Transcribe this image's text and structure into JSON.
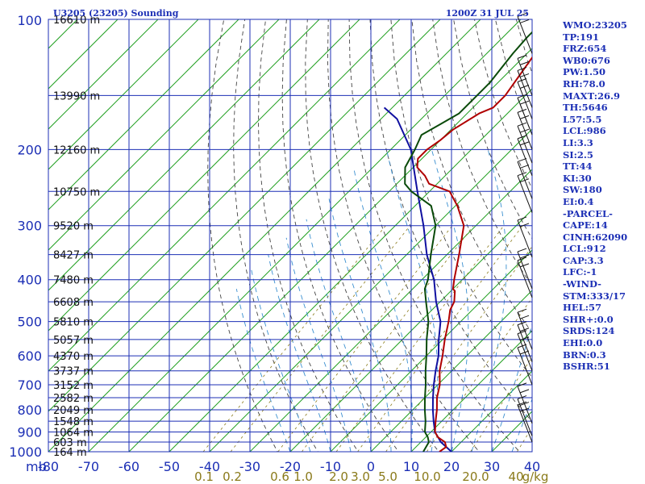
{
  "header": {
    "station": "U3205 (23205) Sounding",
    "valid": "1200Z 31 JUL 25"
  },
  "indices": [
    "WMO:23205",
    "TP:191",
    "FRZ:654",
    "WB0:676",
    "PW:1.50",
    "RH:78.0",
    "MAXT:26.9",
    "TH:5646",
    "L57:5.5",
    "LCL:986",
    "LI:3.3",
    "SI:2.5",
    "TT:44",
    "KI:30",
    "SW:180",
    "EI:0.4",
    "-PARCEL-",
    "CAPE:14",
    "CINH:62090",
    "LCL:912",
    "CAP:3.3",
    "LFC:-1",
    "-WIND-",
    "STM:333/17",
    "HEL:57",
    "SHR+:0.0",
    "SRDS:124",
    "EHI:0.0",
    "BRN:0.3",
    "BSHR:51"
  ],
  "chart_data": {
    "type": "skew-t",
    "colors": {
      "grid": "#1c2fb5",
      "temperature": "#b00000",
      "dewpoint": "#0a4a0a",
      "parcel": "#1010a0",
      "isotherm": "#22a022",
      "dry_adiabat": "#444444",
      "moist_adiabat": "#3a8fd0",
      "mixing_ratio": "#8a7a1a"
    },
    "pressure_axis": {
      "unit": "mb",
      "labels": [
        "100",
        "200",
        "300",
        "400",
        "500",
        "600",
        "700",
        "800",
        "900",
        "1000"
      ],
      "values": [
        100,
        200,
        300,
        400,
        500,
        600,
        700,
        800,
        900,
        1000
      ],
      "log_scale": true
    },
    "temperature_axis": {
      "labels": [
        "-80",
        "-70",
        "-60",
        "-50",
        "-40",
        "-30",
        "-20",
        "-10",
        "0",
        "10",
        "20",
        "30",
        "40"
      ],
      "values": [
        -80,
        -70,
        -60,
        -50,
        -40,
        -30,
        -20,
        -10,
        0,
        10,
        20,
        30,
        40
      ]
    },
    "mixing_ratio_labels": {
      "labels": [
        "0.1",
        "0.2",
        "0.6",
        "1.0",
        "2.0",
        "3.0",
        "5.0",
        "10.0",
        "20.0",
        "40"
      ],
      "unit": "g/kg"
    },
    "height_levels": {
      "labels": [
        "16610 m",
        "13990 m",
        "12160 m",
        "10750 m",
        "9520 m",
        "8427 m",
        "7480 m",
        "6608 m",
        "5810 m",
        "5057 m",
        "4370 m",
        "3737 m",
        "3152 m",
        "2582 m",
        "2049 m",
        "1548 m",
        "1064 m",
        "603 m",
        "164 m"
      ],
      "pressures": [
        100,
        150,
        200,
        250,
        300,
        350,
        400,
        450,
        500,
        550,
        600,
        650,
        700,
        750,
        800,
        850,
        900,
        950,
        1000
      ]
    },
    "temperature_profile": {
      "pressure": [
        1000,
        975,
        950,
        925,
        900,
        850,
        800,
        750,
        700,
        650,
        600,
        550,
        500,
        470,
        450,
        425,
        420,
        400,
        350,
        300,
        270,
        250,
        240,
        230,
        220,
        210,
        200,
        190,
        180,
        165,
        160,
        150,
        120,
        110,
        100
      ],
      "temp": [
        17,
        17.5,
        16,
        13,
        11,
        8.5,
        6,
        3,
        0.5,
        -3,
        -6,
        -9.5,
        -13,
        -15.5,
        -16.5,
        -19,
        -20,
        -22,
        -27,
        -33,
        -39.5,
        -45,
        -52,
        -55,
        -59,
        -61,
        -61,
        -60,
        -59.5,
        -57,
        -55,
        -55,
        -58,
        -60,
        -60
      ]
    },
    "dewpoint_profile": {
      "pressure": [
        1000,
        975,
        950,
        925,
        900,
        850,
        800,
        750,
        700,
        650,
        600,
        550,
        500,
        450,
        420,
        400,
        350,
        300,
        270,
        250,
        240,
        220,
        200,
        185,
        175,
        165,
        150,
        140,
        120,
        110,
        100
      ],
      "dewpoint": [
        13,
        12.5,
        12,
        10.5,
        8.5,
        6,
        3,
        0,
        -3,
        -6.5,
        -10,
        -14,
        -18,
        -23.5,
        -27,
        -28.5,
        -34,
        -40,
        -46,
        -54.5,
        -58,
        -62,
        -64,
        -66,
        -64,
        -62,
        -62,
        -62,
        -63.5,
        -64,
        -64
      ]
    },
    "parcel_profile": {
      "pressure": [
        1000,
        950,
        900,
        850,
        800,
        750,
        700,
        650,
        600,
        550,
        500,
        450,
        400,
        350,
        300,
        250,
        200,
        170,
        160
      ],
      "temp": [
        20,
        15,
        11,
        8,
        5,
        2,
        -1,
        -4,
        -7,
        -11,
        -15,
        -21,
        -27,
        -35,
        -43,
        -53,
        -65,
        -76,
        -82
      ]
    },
    "skew": "isotherms slope 45 degrees toward upper right"
  }
}
